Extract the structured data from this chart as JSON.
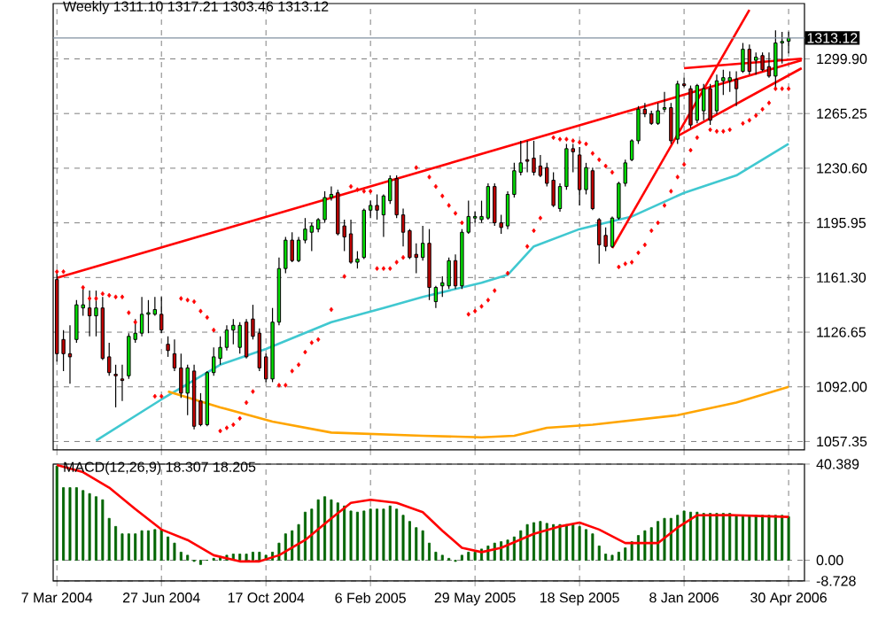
{
  "chart_data": [
    {
      "type": "candlestick",
      "title": "Weekly 1311.10 1317.21 1303.46 1313.12",
      "grid": true,
      "tick_labels": "y",
      "x": [
        "2004-03-07",
        "2004-03-14",
        "2004-03-21",
        "2004-03-28",
        "2004-04-04",
        "2004-04-11",
        "2004-04-18",
        "2004-04-25",
        "2004-05-02",
        "2004-05-09",
        "2004-05-16",
        "2004-05-23",
        "2004-05-30",
        "2004-06-06",
        "2004-06-13",
        "2004-06-20",
        "2004-06-27",
        "2004-07-04",
        "2004-07-11",
        "2004-07-18",
        "2004-07-25",
        "2004-08-01",
        "2004-08-08",
        "2004-08-15",
        "2004-08-22",
        "2004-08-29",
        "2004-09-05",
        "2004-09-12",
        "2004-09-19",
        "2004-09-26",
        "2004-10-03",
        "2004-10-10",
        "2004-10-17",
        "2004-10-24",
        "2004-10-31",
        "2004-11-07",
        "2004-11-14",
        "2004-11-21",
        "2004-11-28",
        "2004-12-05",
        "2004-12-12",
        "2004-12-19",
        "2004-12-26",
        "2005-01-02",
        "2005-01-09",
        "2005-01-16",
        "2005-01-23",
        "2005-01-30",
        "2005-02-06",
        "2005-02-13",
        "2005-02-20",
        "2005-02-27",
        "2005-03-06",
        "2005-03-13",
        "2005-03-20",
        "2005-03-27",
        "2005-04-03",
        "2005-04-10",
        "2005-04-17",
        "2005-04-24",
        "2005-05-01",
        "2005-05-08",
        "2005-05-15",
        "2005-05-22",
        "2005-05-29",
        "2005-06-05",
        "2005-06-12",
        "2005-06-19",
        "2005-06-26",
        "2005-07-03",
        "2005-07-10",
        "2005-07-17",
        "2005-07-24",
        "2005-07-31",
        "2005-08-07",
        "2005-08-14",
        "2005-08-21",
        "2005-08-28",
        "2005-09-04",
        "2005-09-11",
        "2005-09-18",
        "2005-09-25",
        "2005-10-02",
        "2005-10-09",
        "2005-10-16",
        "2005-10-23",
        "2005-10-30",
        "2005-11-06",
        "2005-11-13",
        "2005-11-20",
        "2005-11-27",
        "2005-12-04",
        "2005-12-11",
        "2005-12-18",
        "2005-12-25",
        "2006-01-01",
        "2006-01-08",
        "2006-01-15",
        "2006-01-22",
        "2006-01-29",
        "2006-02-05",
        "2006-02-12",
        "2006-02-19",
        "2006-02-26",
        "2006-03-05",
        "2006-03-12",
        "2006-03-19",
        "2006-03-26",
        "2006-04-02",
        "2006-04-09",
        "2006-04-16",
        "2006-04-23",
        "2006-04-30"
      ],
      "ohlc": [
        [
          1160,
          1164,
          1108,
          1113
        ],
        [
          1122,
          1128,
          1102,
          1113
        ],
        [
          1113,
          1131,
          1094,
          1111
        ],
        [
          1122,
          1147,
          1120,
          1144
        ],
        [
          1142,
          1155,
          1137,
          1144
        ],
        [
          1142,
          1153,
          1124,
          1137
        ],
        [
          1137,
          1153,
          1124,
          1142
        ],
        [
          1142,
          1149,
          1109,
          1110
        ],
        [
          1111,
          1120,
          1099,
          1101
        ],
        [
          1100,
          1106,
          1079,
          1099
        ],
        [
          1097,
          1106,
          1083,
          1096
        ],
        [
          1099,
          1126,
          1097,
          1124
        ],
        [
          1122,
          1135,
          1120,
          1126
        ],
        [
          1126,
          1149,
          1124,
          1138
        ],
        [
          1138,
          1147,
          1126,
          1139
        ],
        [
          1138,
          1149,
          1137,
          1141
        ],
        [
          1138,
          1149,
          1126,
          1128
        ],
        [
          1119,
          1124,
          1111,
          1115
        ],
        [
          1113,
          1122,
          1102,
          1104
        ],
        [
          1104,
          1113,
          1085,
          1088
        ],
        [
          1088,
          1106,
          1074,
          1104
        ],
        [
          1102,
          1106,
          1065,
          1067
        ],
        [
          1083,
          1088,
          1067,
          1068
        ],
        [
          1068,
          1102,
          1067,
          1101
        ],
        [
          1101,
          1117,
          1099,
          1111
        ],
        [
          1110,
          1124,
          1106,
          1117
        ],
        [
          1117,
          1131,
          1115,
          1128
        ],
        [
          1128,
          1135,
          1119,
          1131
        ],
        [
          1117,
          1133,
          1113,
          1131
        ],
        [
          1133,
          1135,
          1110,
          1111
        ],
        [
          1135,
          1144,
          1122,
          1124
        ],
        [
          1126,
          1129,
          1102,
          1104
        ],
        [
          1111,
          1113,
          1095,
          1097
        ],
        [
          1097,
          1142,
          1095,
          1133
        ],
        [
          1133,
          1174,
          1131,
          1167
        ],
        [
          1167,
          1187,
          1164,
          1185
        ],
        [
          1185,
          1190,
          1171,
          1172
        ],
        [
          1172,
          1187,
          1171,
          1185
        ],
        [
          1185,
          1199,
          1183,
          1192
        ],
        [
          1190,
          1196,
          1178,
          1194
        ],
        [
          1192,
          1199,
          1190,
          1198
        ],
        [
          1198,
          1216,
          1196,
          1212
        ],
        [
          1212,
          1219,
          1210,
          1214
        ],
        [
          1215,
          1217,
          1188,
          1189
        ],
        [
          1194,
          1198,
          1178,
          1187
        ],
        [
          1189,
          1198,
          1170,
          1171
        ],
        [
          1171,
          1178,
          1167,
          1173
        ],
        [
          1174,
          1205,
          1173,
          1204
        ],
        [
          1204,
          1210,
          1199,
          1207
        ],
        [
          1207,
          1214,
          1198,
          1204
        ],
        [
          1201,
          1214,
          1187,
          1213
        ],
        [
          1210,
          1226,
          1208,
          1224
        ],
        [
          1224,
          1226,
          1199,
          1201
        ],
        [
          1201,
          1205,
          1181,
          1190
        ],
        [
          1191,
          1192,
          1173,
          1174
        ],
        [
          1176,
          1183,
          1164,
          1174
        ],
        [
          1174,
          1194,
          1172,
          1183
        ],
        [
          1183,
          1192,
          1147,
          1155
        ],
        [
          1146,
          1156,
          1142,
          1155
        ],
        [
          1156,
          1162,
          1149,
          1158
        ],
        [
          1156,
          1174,
          1154,
          1172
        ],
        [
          1172,
          1176,
          1154,
          1156
        ],
        [
          1156,
          1192,
          1154,
          1190
        ],
        [
          1190,
          1210,
          1189,
          1200
        ],
        [
          1199,
          1203,
          1196,
          1200
        ],
        [
          1198,
          1210,
          1196,
          1200
        ],
        [
          1199,
          1221,
          1198,
          1219
        ],
        [
          1219,
          1221,
          1194,
          1196
        ],
        [
          1196,
          1201,
          1189,
          1193
        ],
        [
          1194,
          1216,
          1192,
          1214
        ],
        [
          1214,
          1234,
          1212,
          1229
        ],
        [
          1228,
          1248,
          1226,
          1234
        ],
        [
          1236,
          1248,
          1228,
          1235
        ],
        [
          1237,
          1248,
          1226,
          1228
        ],
        [
          1232,
          1239,
          1225,
          1226
        ],
        [
          1231,
          1234,
          1219,
          1221
        ],
        [
          1223,
          1228,
          1206,
          1207
        ],
        [
          1205,
          1221,
          1203,
          1219
        ],
        [
          1219,
          1246,
          1217,
          1243
        ],
        [
          1243,
          1246,
          1228,
          1241
        ],
        [
          1239,
          1244,
          1207,
          1217
        ],
        [
          1217,
          1234,
          1214,
          1231
        ],
        [
          1229,
          1231,
          1204,
          1205
        ],
        [
          1198,
          1199,
          1170,
          1182
        ],
        [
          1188,
          1193,
          1178,
          1181
        ],
        [
          1181,
          1200,
          1180,
          1199
        ],
        [
          1199,
          1222,
          1198,
          1221
        ],
        [
          1221,
          1236,
          1219,
          1234
        ],
        [
          1236,
          1249,
          1235,
          1248
        ],
        [
          1248,
          1270,
          1246,
          1268
        ],
        [
          1268,
          1272,
          1263,
          1265
        ],
        [
          1265,
          1267,
          1258,
          1259
        ],
        [
          1259,
          1272,
          1258,
          1267
        ],
        [
          1268,
          1279,
          1266,
          1269
        ],
        [
          1269,
          1272,
          1246,
          1248
        ],
        [
          1249,
          1286,
          1246,
          1284
        ],
        [
          1284,
          1288,
          1282,
          1283
        ],
        [
          1281,
          1283,
          1256,
          1258
        ],
        [
          1261,
          1284,
          1259,
          1283
        ],
        [
          1267,
          1284,
          1261,
          1281
        ],
        [
          1281,
          1284,
          1258,
          1261
        ],
        [
          1267,
          1290,
          1265,
          1286
        ],
        [
          1286,
          1293,
          1277,
          1288
        ],
        [
          1286,
          1292,
          1279,
          1288
        ],
        [
          1287,
          1292,
          1270,
          1281
        ],
        [
          1292,
          1310,
          1291,
          1306
        ],
        [
          1306,
          1309,
          1290,
          1292
        ],
        [
          1299,
          1304,
          1290,
          1301
        ],
        [
          1302,
          1304,
          1292,
          1293
        ],
        [
          1295,
          1304,
          1288,
          1289
        ],
        [
          1289,
          1318,
          1280,
          1310
        ],
        [
          1310,
          1317,
          1297,
          1311
        ],
        [
          1311.1,
          1317.21,
          1303.46,
          1313.12
        ]
      ],
      "series": [
        {
          "type": "scatter",
          "marker": "diamond",
          "color": "#ff0000",
          "values": [
            1165,
            1165,
            null,
            null,
            1155,
            1148,
            1148,
            1151,
            1150,
            1149,
            1149,
            1139,
            1133,
            null,
            null,
            1086,
            1086,
            null,
            null,
            1148,
            1147,
            1146,
            1140,
            1136,
            1128,
            1064,
            1066,
            1068,
            1072,
            1082,
            1089,
            null,
            null,
            null,
            1093,
            1093,
            1102,
            1106,
            1114,
            1120,
            1122,
            null,
            1141,
            null,
            1162,
            1219,
            1217,
            1216,
            1216,
            1167,
            1167,
            1167,
            1171,
            1174,
            null,
            1231,
            null,
            1225,
            1219,
            1213,
            1207,
            1202,
            1196,
            1138,
            1140,
            1143,
            1147,
            1153,
            null,
            1164,
            null,
            null,
            1181,
            1191,
            1199,
            null,
            1250,
            1249,
            1249,
            1248,
            1247,
            1246,
            1240,
            1236,
            1232,
            1228,
            1168,
            1170,
            1171,
            1177,
            1182,
            1191,
            1196,
            1207,
            1216,
            1225,
            1233,
            1242,
            1250,
            null,
            1255,
            1254,
            1254,
            1255,
            null,
            1259,
            1261,
            1264,
            1268,
            1272,
            1281,
            1281,
            1281
          ]
        },
        {
          "type": "line",
          "color": "#40c8d0",
          "x": [
            "2004-04-18",
            "2004-06-27",
            "2004-08-29",
            "2004-10-17",
            "2004-12-26",
            "2005-02-20",
            "2005-04-03",
            "2005-06-05",
            "2005-07-03",
            "2005-07-31",
            "2005-09-18",
            "2005-11-13",
            "2006-01-08",
            "2006-03-05",
            "2006-04-30"
          ],
          "values": [
            1058,
            1084,
            1106,
            1116,
            1133,
            1142,
            1149,
            1158,
            1163,
            1181,
            1192,
            1200,
            1215,
            1226,
            1246
          ]
        },
        {
          "type": "line",
          "color": "#ffa500",
          "x": [
            "2004-07-04",
            "2004-08-29",
            "2004-10-24",
            "2004-12-26",
            "2005-04-03",
            "2005-06-05",
            "2005-07-10",
            "2005-08-14",
            "2005-10-02",
            "2006-01-01",
            "2006-03-05",
            "2006-04-30"
          ],
          "values": [
            1089,
            1079,
            1070,
            1063,
            1061,
            1060,
            1061,
            1066,
            1068,
            1074,
            1082,
            1092
          ]
        },
        {
          "type": "line",
          "color": "#ff0000",
          "x": [
            "2004-03-07",
            "2006-05-14"
          ],
          "values": [
            1161,
            1299
          ]
        },
        {
          "type": "line",
          "color": "#ff0000",
          "x": [
            "2005-10-23",
            "2006-03-19"
          ],
          "values": [
            1180,
            1331
          ]
        },
        {
          "type": "line",
          "color": "#ff0000",
          "x": [
            "2006-01-01",
            "2006-05-14"
          ],
          "values": [
            1251,
            1294
          ]
        },
        {
          "type": "line",
          "color": "#ff0000",
          "x": [
            "2006-01-08",
            "2006-05-14"
          ],
          "values": [
            1294,
            1300
          ]
        }
      ],
      "ref_lines": [
        {
          "axis": "y",
          "value": 1313.12,
          "label": "1313.12",
          "color": "#8090a0"
        }
      ],
      "xlim": [
        "2004-03-03",
        "2006-05-17"
      ],
      "xticks": [
        {
          "value": "2004-03-07",
          "label": null
        },
        {
          "value": "2004-06-27",
          "label": null
        },
        {
          "value": "2004-10-17",
          "label": null
        },
        {
          "value": "2005-02-06",
          "label": null
        },
        {
          "value": "2005-05-29",
          "label": null
        },
        {
          "value": "2005-09-18",
          "label": null
        },
        {
          "value": "2006-01-08",
          "label": null
        },
        {
          "value": "2006-04-30",
          "label": null
        }
      ],
      "ylim": [
        1052,
        1335
      ],
      "yticks": [
        {
          "value": 1299.9,
          "label": "1299.90"
        },
        1265.25,
        {
          "value": 1230.6,
          "label": "1230.60"
        },
        1195.95,
        {
          "value": 1161.3,
          "label": "1161.30"
        },
        1126.65,
        {
          "value": 1092,
          "label": "1092.00"
        },
        1057.35
      ]
    },
    {
      "type": "bar",
      "title": "MACD(12,26,9) 18.307 18.205",
      "grid": true,
      "x": [
        "2004-03-07",
        "2004-03-14",
        "2004-03-21",
        "2004-03-28",
        "2004-04-04",
        "2004-04-11",
        "2004-04-18",
        "2004-04-25",
        "2004-05-02",
        "2004-05-09",
        "2004-05-16",
        "2004-05-23",
        "2004-05-30",
        "2004-06-06",
        "2004-06-13",
        "2004-06-20",
        "2004-06-27",
        "2004-07-04",
        "2004-07-11",
        "2004-07-18",
        "2004-07-25",
        "2004-08-01",
        "2004-08-08",
        "2004-08-15",
        "2004-08-22",
        "2004-08-29",
        "2004-09-05",
        "2004-09-12",
        "2004-09-19",
        "2004-09-26",
        "2004-10-03",
        "2004-10-10",
        "2004-10-17",
        "2004-10-24",
        "2004-10-31",
        "2004-11-07",
        "2004-11-14",
        "2004-11-21",
        "2004-11-28",
        "2004-12-05",
        "2004-12-12",
        "2004-12-19",
        "2004-12-26",
        "2005-01-02",
        "2005-01-09",
        "2005-01-16",
        "2005-01-23",
        "2005-01-30",
        "2005-02-06",
        "2005-02-13",
        "2005-02-20",
        "2005-02-27",
        "2005-03-06",
        "2005-03-13",
        "2005-03-20",
        "2005-03-27",
        "2005-04-03",
        "2005-04-10",
        "2005-04-17",
        "2005-04-24",
        "2005-05-01",
        "2005-05-08",
        "2005-05-15",
        "2005-05-22",
        "2005-05-29",
        "2005-06-05",
        "2005-06-12",
        "2005-06-19",
        "2005-06-26",
        "2005-07-03",
        "2005-07-10",
        "2005-07-17",
        "2005-07-24",
        "2005-07-31",
        "2005-08-07",
        "2005-08-14",
        "2005-08-21",
        "2005-08-28",
        "2005-09-04",
        "2005-09-11",
        "2005-09-18",
        "2005-09-25",
        "2005-10-02",
        "2005-10-09",
        "2005-10-16",
        "2005-10-23",
        "2005-10-30",
        "2005-11-06",
        "2005-11-13",
        "2005-11-20",
        "2005-11-27",
        "2005-12-04",
        "2005-12-11",
        "2005-12-18",
        "2005-12-25",
        "2006-01-01",
        "2006-01-08",
        "2006-01-15",
        "2006-01-22",
        "2006-01-29",
        "2006-02-05",
        "2006-02-12",
        "2006-02-19",
        "2006-02-26",
        "2006-03-05",
        "2006-03-12",
        "2006-03-19",
        "2006-03-26",
        "2006-04-02",
        "2006-04-09",
        "2006-04-16",
        "2006-04-23",
        "2006-04-30"
      ],
      "series": [
        {
          "type": "bar",
          "color": "#006400",
          "values": [
            39.6,
            30.5,
            30.5,
            30.5,
            29.3,
            28.0,
            26.7,
            25.4,
            17.6,
            14.2,
            11.1,
            11.1,
            11.1,
            12.4,
            12.4,
            12.9,
            12.9,
            9.8,
            7.2,
            3.4,
            2.1,
            -0.5,
            -1.8,
            0,
            0.8,
            1.6,
            2.1,
            2.6,
            2.6,
            2.6,
            3.4,
            3.4,
            2.1,
            3.4,
            7.2,
            11.1,
            12.4,
            15.0,
            20.2,
            21.5,
            25.4,
            26.7,
            25.4,
            24.1,
            22.8,
            20.7,
            20.2,
            20.7,
            21.5,
            21.5,
            21.5,
            22.8,
            21.5,
            18.9,
            16.3,
            13.7,
            12.4,
            7.2,
            3.4,
            2.1,
            0.8,
            -0.5,
            2.1,
            3.4,
            3.4,
            4.7,
            6.0,
            7.2,
            7.8,
            8.5,
            9.8,
            12.4,
            15.0,
            15.8,
            16.3,
            15.5,
            15.0,
            15.0,
            15.0,
            15.0,
            14.2,
            12.9,
            11.1,
            6.0,
            2.6,
            2.1,
            3.4,
            5.2,
            7.8,
            10.4,
            12.4,
            13.7,
            16.3,
            17.6,
            17.6,
            18.9,
            20.7,
            20.2,
            20.2,
            19.7,
            19.7,
            19.7,
            19.7,
            19.7,
            18.9,
            18.9,
            18.9,
            18.9,
            18.9,
            18.9,
            18.9,
            18.9,
            18.3
          ]
        },
        {
          "type": "line",
          "color": "#ff0000",
          "x": [
            "2004-03-07",
            "2004-04-04",
            "2004-05-02",
            "2004-05-30",
            "2004-06-27",
            "2004-07-25",
            "2004-08-22",
            "2004-09-19",
            "2004-10-10",
            "2004-10-31",
            "2004-11-28",
            "2004-12-26",
            "2005-01-16",
            "2005-02-06",
            "2005-03-06",
            "2005-04-03",
            "2005-04-24",
            "2005-05-15",
            "2005-06-05",
            "2005-06-26",
            "2005-07-31",
            "2005-08-28",
            "2005-09-18",
            "2005-10-09",
            "2005-11-06",
            "2005-12-11",
            "2006-01-01",
            "2006-01-22",
            "2006-02-26",
            "2006-04-30"
          ],
          "values": [
            40,
            37.0,
            30.5,
            21.5,
            12.9,
            8.5,
            2.1,
            -0.5,
            -0.5,
            2.1,
            8.5,
            17.6,
            24.1,
            25.4,
            24.1,
            20.2,
            12.4,
            5.2,
            3.4,
            5.2,
            11.1,
            14.2,
            15.8,
            12.9,
            7.2,
            7.2,
            13.7,
            18.9,
            19.0,
            18.2
          ]
        }
      ],
      "xlim": [
        "2004-03-03",
        "2006-05-17"
      ],
      "xticks": [
        {
          "value": "2004-03-07",
          "label": "7 Mar 2004"
        },
        {
          "value": "2004-06-27",
          "label": "27 Jun 2004"
        },
        {
          "value": "2004-10-17",
          "label": "17 Oct 2004"
        },
        {
          "value": "2005-02-06",
          "label": "6 Feb 2005"
        },
        {
          "value": "2005-05-29",
          "label": "29 May 2005"
        },
        {
          "value": "2005-09-18",
          "label": "18 Sep 2005"
        },
        {
          "value": "2006-01-08",
          "label": "8 Jan 2006"
        },
        {
          "value": "2006-04-30",
          "label": "30 Apr 2006"
        }
      ],
      "ylim": [
        -8.728,
        40.389
      ],
      "yticks": [
        40.389,
        {
          "value": 0,
          "label": "0.00"
        },
        -8.728
      ]
    }
  ]
}
